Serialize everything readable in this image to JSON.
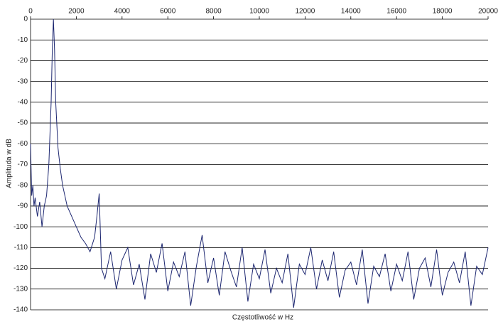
{
  "chart_data": {
    "type": "line",
    "xlabel": "Częstotliwość w Hz",
    "ylabel": "Amplituda w dB",
    "x": [
      0,
      50,
      100,
      150,
      200,
      300,
      400,
      500,
      600,
      700,
      800,
      900,
      950,
      1000,
      1050,
      1100,
      1200,
      1300,
      1400,
      1500,
      1600,
      1800,
      2000,
      2200,
      2400,
      2600,
      2800,
      2900,
      3000,
      3100,
      3250,
      3500,
      3750,
      4000,
      4250,
      4500,
      4750,
      5000,
      5250,
      5500,
      5750,
      6000,
      6250,
      6500,
      6750,
      7000,
      7250,
      7500,
      7750,
      8000,
      8250,
      8500,
      8750,
      9000,
      9250,
      9500,
      9750,
      10000,
      10250,
      10500,
      10750,
      11000,
      11250,
      11500,
      11750,
      12000,
      12250,
      12500,
      12750,
      13000,
      13250,
      13500,
      13750,
      14000,
      14250,
      14500,
      14750,
      15000,
      15250,
      15500,
      15750,
      16000,
      16250,
      16500,
      16750,
      17000,
      17250,
      17500,
      17750,
      18000,
      18250,
      18500,
      18750,
      19000,
      19250,
      19500,
      19750,
      20000
    ],
    "values": [
      -60,
      -85,
      -80,
      -90,
      -86,
      -95,
      -88,
      -100,
      -90,
      -85,
      -70,
      -40,
      -15,
      0,
      -15,
      -40,
      -62,
      -72,
      -80,
      -85,
      -90,
      -95,
      -100,
      -105,
      -108,
      -112,
      -105,
      -95,
      -84,
      -120,
      -125,
      -112,
      -130,
      -116,
      -110,
      -128,
      -118,
      -135,
      -113,
      -122,
      -108,
      -131,
      -117,
      -124,
      -112,
      -138,
      -119,
      -104,
      -127,
      -115,
      -133,
      -112,
      -121,
      -129,
      -110,
      -136,
      -118,
      -125,
      -111,
      -132,
      -120,
      -127,
      -113,
      -139,
      -118,
      -123,
      -110,
      -130,
      -116,
      -126,
      -112,
      -134,
      -121,
      -117,
      -128,
      -111,
      -137,
      -119,
      -124,
      -113,
      -131,
      -118,
      -126,
      -112,
      -135,
      -120,
      -115,
      -129,
      -111,
      -133,
      -122,
      -117,
      -127,
      -112,
      -138,
      -119,
      -123,
      -110
    ],
    "color": "#1c2670",
    "xlim": [
      0,
      20000
    ],
    "xticks": [
      0,
      2000,
      4000,
      6000,
      8000,
      10000,
      12000,
      14000,
      16000,
      18000,
      20000
    ],
    "ylim": [
      -140,
      0
    ],
    "yticks": [
      0,
      -10,
      -20,
      -30,
      -40,
      -50,
      -60,
      -70,
      -80,
      -90,
      -100,
      -110,
      -120,
      -130,
      -140
    ],
    "grid": true
  }
}
